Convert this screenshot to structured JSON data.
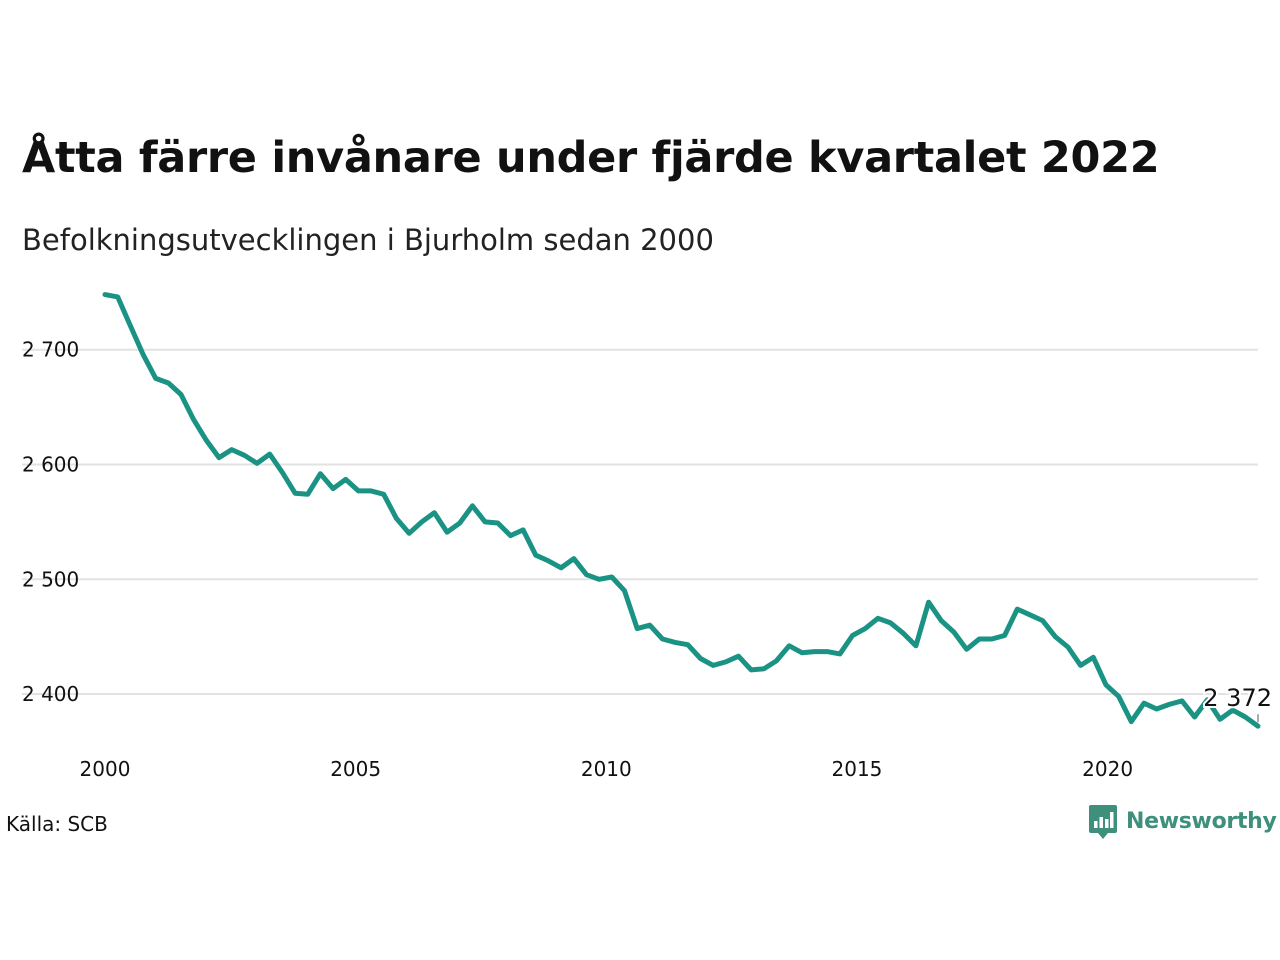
{
  "title": "Åtta färre invånare under fjärde kvartalet 2022",
  "subtitle": "Befolkningsutvecklingen i Bjurholm sedan 2000",
  "source": "Källa: SCB",
  "brand": {
    "name": "Newsworthy",
    "icon": "newsworthy-logo-icon",
    "color": "#3e8f7c"
  },
  "colors": {
    "line": "#1a9384",
    "grid": "#e2e2e2",
    "text": "#111111"
  },
  "chart_data": {
    "type": "line",
    "title": "Åtta färre invånare under fjärde kvartalet 2022",
    "subtitle": "Befolkningsutvecklingen i Bjurholm sedan 2000",
    "xlabel": "",
    "ylabel": "",
    "grid": true,
    "legend": "none",
    "xlim": [
      2000,
      2023
    ],
    "ylim": [
      2353,
      2752
    ],
    "x_ticks": [
      2000,
      2005,
      2010,
      2015,
      2020
    ],
    "x_tick_labels": [
      "2000",
      "2005",
      "2010",
      "2015",
      "2020"
    ],
    "y_ticks": [
      2400,
      2500,
      2600,
      2700
    ],
    "y_tick_labels": [
      "2 400",
      "2 500",
      "2 600",
      "2 700"
    ],
    "end_label": "2 372",
    "series": [
      {
        "x_start": "2000 Q1",
        "x_end": "2022 Q4",
        "values": [
          2748,
          2746,
          2721,
          2696,
          2675,
          2671,
          2661,
          2639,
          2621,
          2606,
          2613,
          2608,
          2601,
          2609,
          2593,
          2575,
          2574,
          2592,
          2579,
          2587,
          2577,
          2577,
          2574,
          2553,
          2540,
          2550,
          2558,
          2541,
          2549,
          2564,
          2550,
          2549,
          2538,
          2543,
          2521,
          2516,
          2510,
          2518,
          2504,
          2500,
          2502,
          2490,
          2457,
          2460,
          2448,
          2445,
          2443,
          2431,
          2425,
          2428,
          2433,
          2421,
          2422,
          2429,
          2442,
          2436,
          2437,
          2437,
          2435,
          2451,
          2457,
          2466,
          2462,
          2453,
          2442,
          2480,
          2464,
          2454,
          2439,
          2448,
          2448,
          2451,
          2474,
          2469,
          2464,
          2450,
          2441,
          2425,
          2432,
          2408,
          2398,
          2376,
          2392,
          2387,
          2391,
          2394,
          2380,
          2395,
          2378,
          2386,
          2380,
          2372
        ]
      }
    ]
  }
}
